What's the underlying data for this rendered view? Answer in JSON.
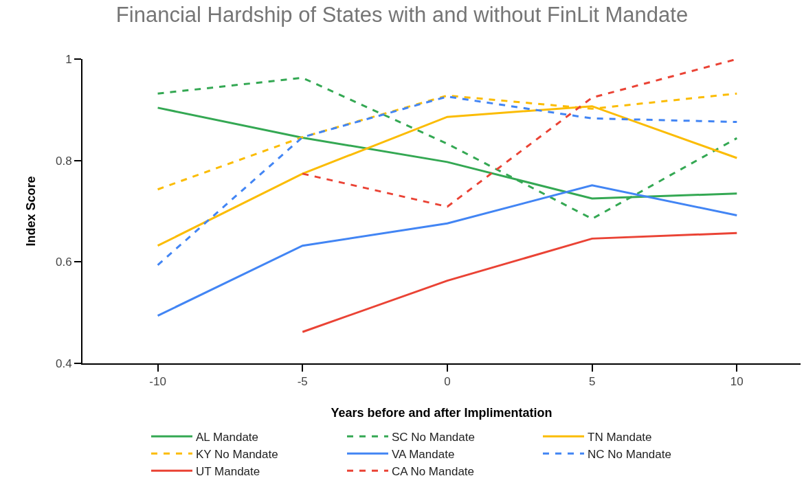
{
  "chart_data": {
    "type": "line",
    "title": "Financial Hardship of States with and without FinLit Mandate",
    "xlabel": "Years before and after Implimentation",
    "ylabel": "Index Score",
    "x": [
      -10,
      -5,
      0,
      5,
      10
    ],
    "xlim": [
      -12.6,
      12.2
    ],
    "xticks": [
      -10,
      -5,
      0,
      5,
      10
    ],
    "ylim": [
      0.4,
      1
    ],
    "yticks": [
      0.4,
      0.6,
      0.8,
      1
    ],
    "grid": false,
    "legend": "bottom",
    "series": [
      {
        "name": "AL Mandate",
        "color": "#34a853",
        "line_style": "solid",
        "values": [
          0.904,
          0.845,
          0.797,
          0.725,
          0.735
        ]
      },
      {
        "name": "SC No Mandate",
        "color": "#34a853",
        "line_style": "dashed",
        "values": [
          0.932,
          0.963,
          0.833,
          0.685,
          0.844
        ]
      },
      {
        "name": "TN Mandate",
        "color": "#fbbc04",
        "line_style": "solid",
        "values": [
          0.632,
          0.774,
          0.886,
          0.907,
          0.805
        ]
      },
      {
        "name": "KY No Mandate",
        "color": "#fbbc04",
        "line_style": "dashed",
        "values": [
          0.743,
          0.846,
          0.928,
          0.902,
          0.932
        ]
      },
      {
        "name": "VA Mandate",
        "color": "#4285f4",
        "line_style": "solid",
        "values": [
          0.494,
          0.632,
          0.676,
          0.751,
          0.692
        ]
      },
      {
        "name": "NC No Mandate",
        "color": "#4285f4",
        "line_style": "dashed",
        "values": [
          0.594,
          0.846,
          0.926,
          0.883,
          0.876
        ]
      },
      {
        "name": "UT Mandate",
        "color": "#ea4335",
        "line_style": "solid",
        "values": [
          null,
          0.462,
          0.563,
          0.646,
          0.657
        ]
      },
      {
        "name": "CA No Mandate",
        "color": "#ea4335",
        "line_style": "dashed",
        "values": [
          null,
          0.774,
          0.709,
          0.924,
          1.0
        ]
      }
    ]
  }
}
